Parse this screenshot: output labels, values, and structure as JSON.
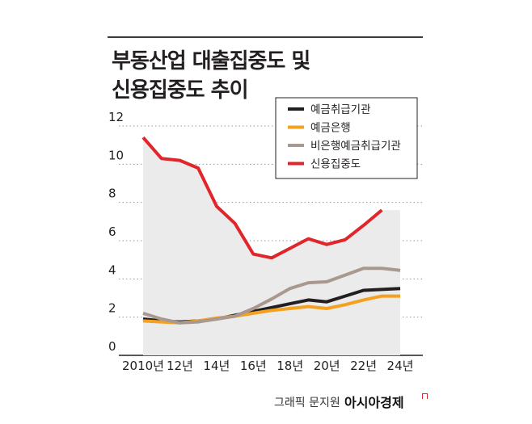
{
  "header": {
    "title_line1": "부동산업 대출집중도 및",
    "title_line2": "신용집중도 추이"
  },
  "footer": {
    "credit": "그래픽 문지원",
    "brand": "아시아경제"
  },
  "chart_data": {
    "type": "line",
    "title": "부동산업 대출집중도 및 신용집중도 추이",
    "x": [
      2010,
      2011,
      2012,
      2013,
      2014,
      2015,
      2016,
      2017,
      2018,
      2019,
      2020,
      2021,
      2022,
      2023,
      2024
    ],
    "xtick_values": [
      2010,
      2012,
      2014,
      2016,
      2018,
      2020,
      2022,
      2024
    ],
    "xtick_labels": [
      "2010년",
      "12년",
      "14년",
      "16년",
      "18년",
      "20년",
      "22년",
      "24년"
    ],
    "ylim": [
      0,
      12
    ],
    "yticks": [
      0,
      2,
      4,
      6,
      8,
      10,
      12
    ],
    "grid": "horizontal dotted",
    "legend_position": "top-right",
    "shaded_area_series": "신용집중도",
    "series": [
      {
        "name": "예금취급기관",
        "color": "#231f20",
        "values": [
          1.9,
          1.8,
          1.75,
          1.8,
          1.9,
          2.1,
          2.3,
          2.5,
          2.7,
          2.9,
          2.8,
          3.1,
          3.4,
          3.45,
          3.5
        ]
      },
      {
        "name": "예금은행",
        "color": "#f4a11f",
        "values": [
          1.8,
          1.75,
          1.7,
          1.8,
          1.95,
          2.05,
          2.2,
          2.35,
          2.45,
          2.55,
          2.45,
          2.65,
          2.9,
          3.1,
          3.1
        ]
      },
      {
        "name": "비은행예금취급기관",
        "color": "#a8988f",
        "values": [
          2.2,
          1.9,
          1.7,
          1.75,
          1.9,
          2.05,
          2.45,
          2.95,
          3.5,
          3.8,
          3.85,
          4.2,
          4.55,
          4.55,
          4.45
        ]
      },
      {
        "name": "신용집중도",
        "color": "#e0252b",
        "values": [
          11.4,
          10.3,
          10.2,
          9.8,
          7.8,
          6.9,
          5.3,
          5.1,
          5.6,
          6.1,
          5.8,
          6.05,
          6.8,
          7.6,
          null
        ]
      }
    ]
  }
}
